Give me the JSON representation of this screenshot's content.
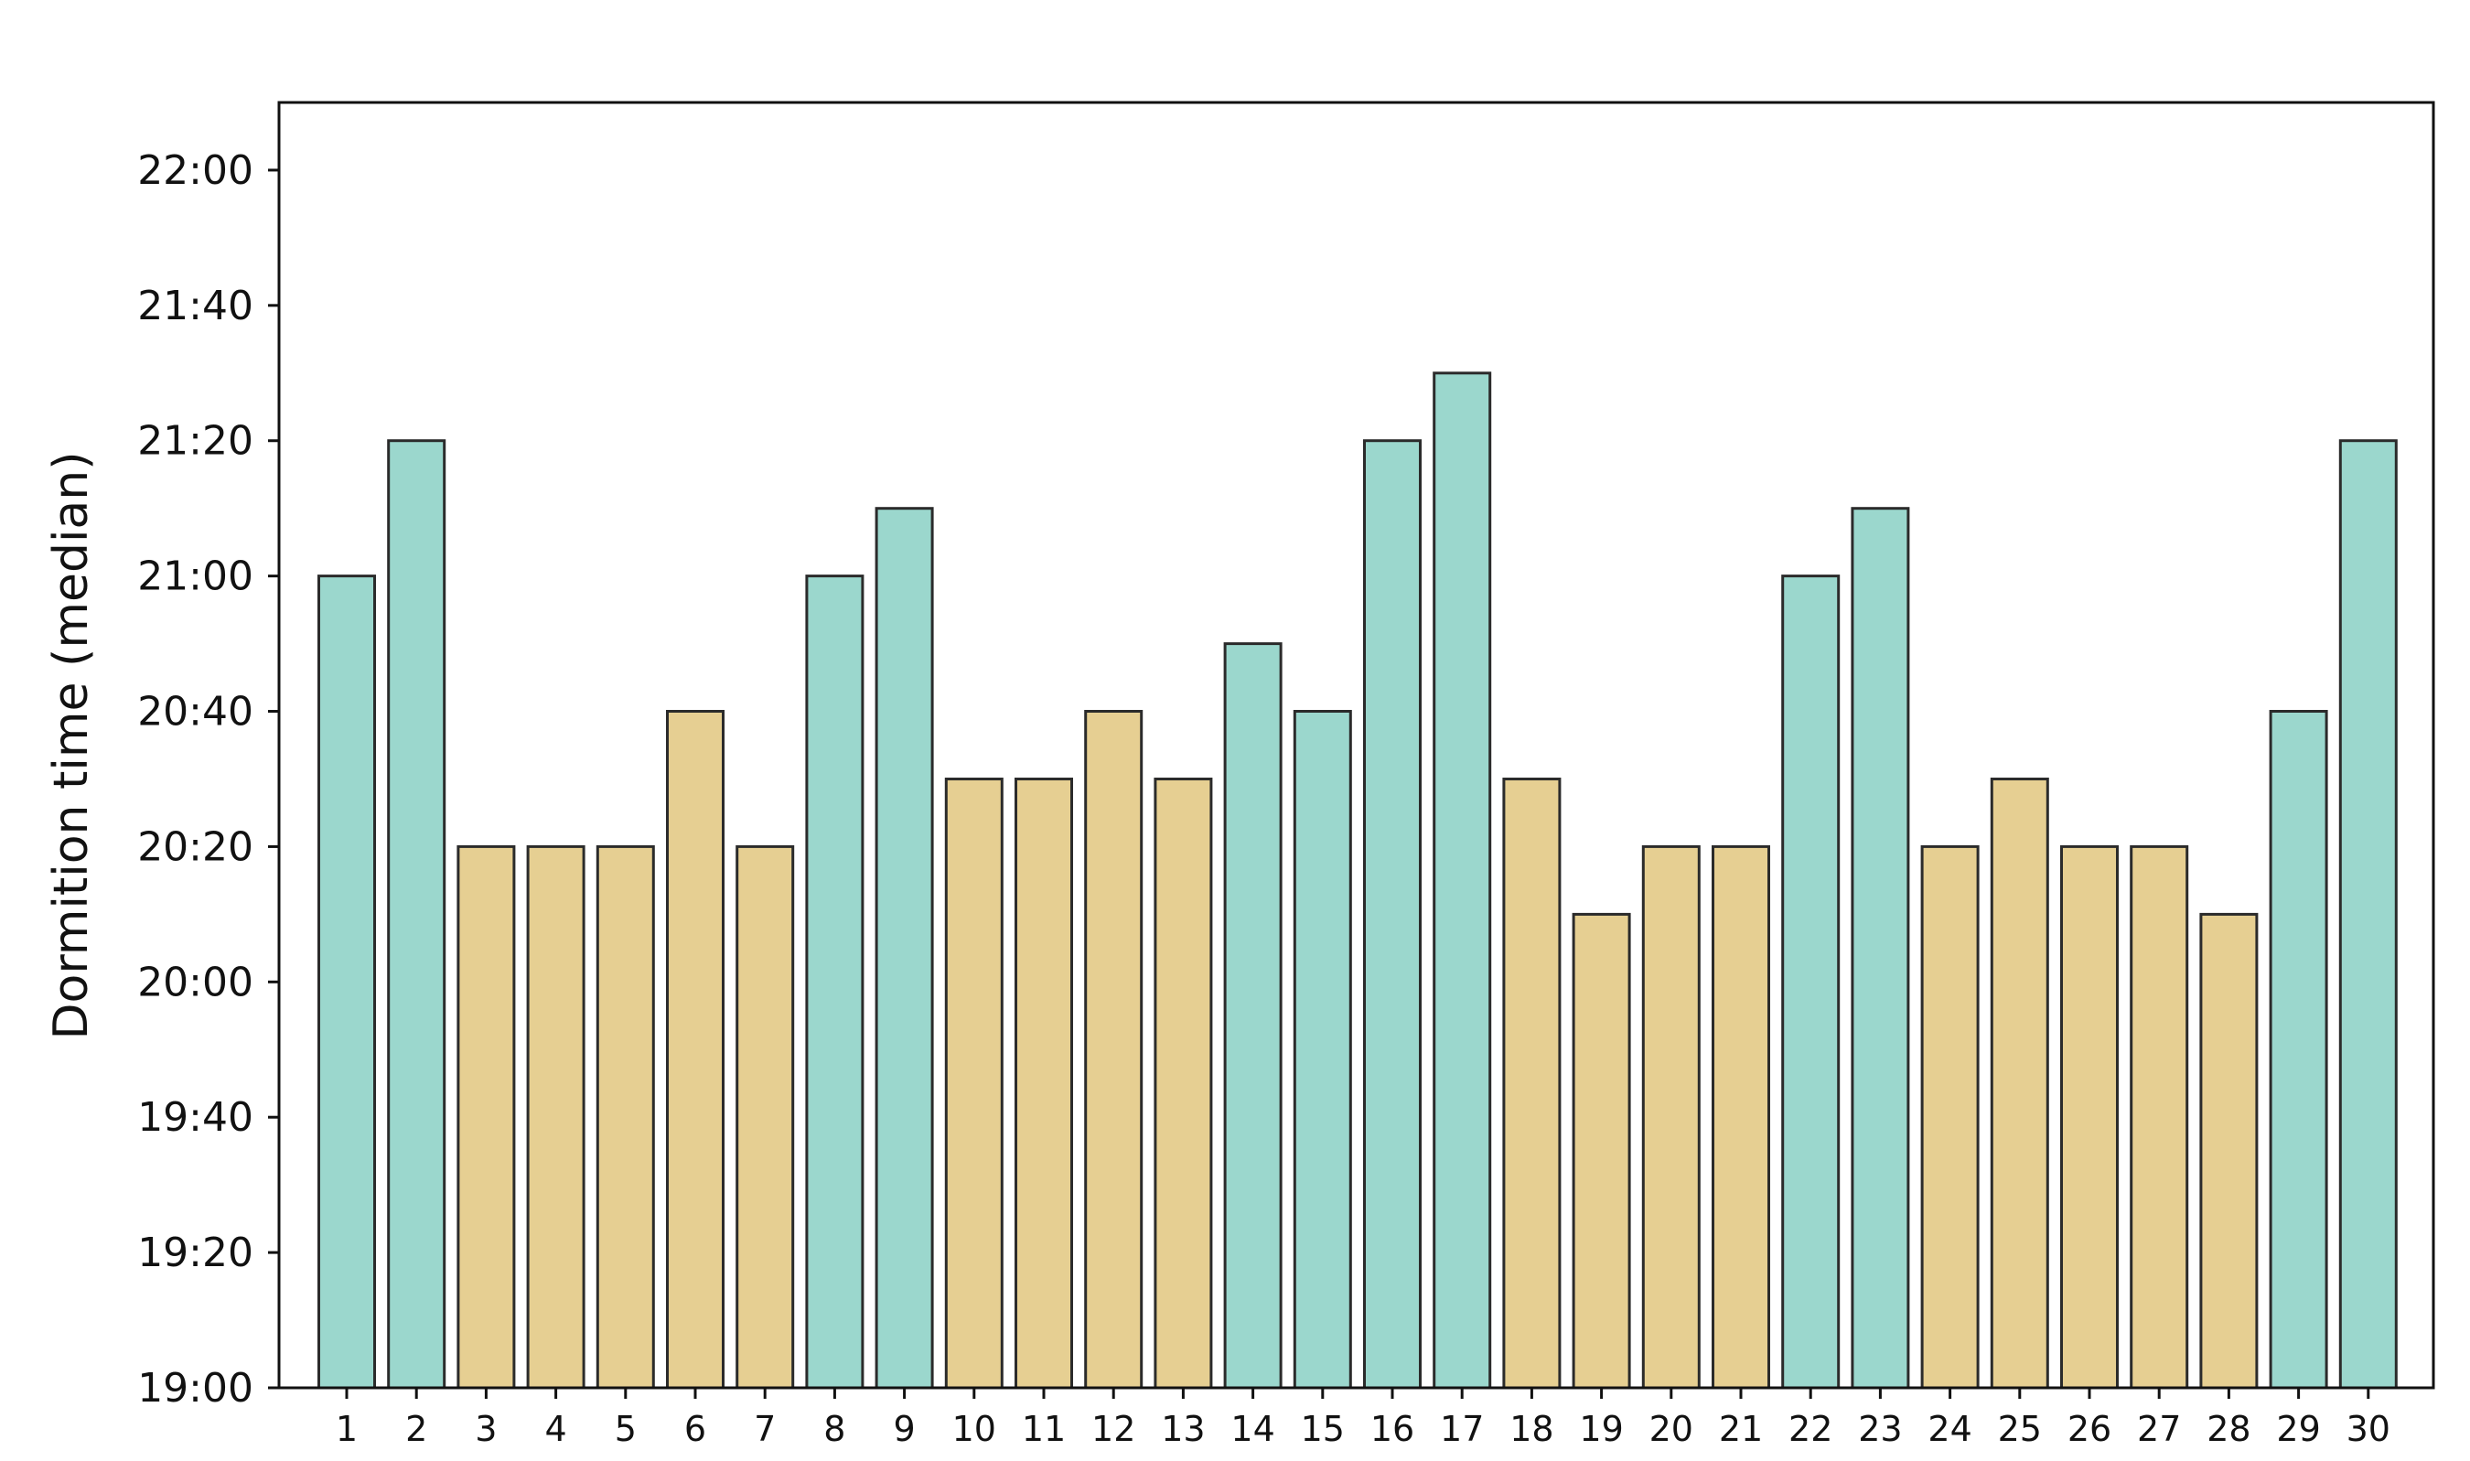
{
  "chart_data": {
    "type": "bar",
    "title": "",
    "xlabel": "",
    "ylabel": "Dormition time (median)",
    "ylim": [
      "19:00",
      "22:10"
    ],
    "y_ticks": [
      "19:00",
      "19:20",
      "19:40",
      "20:00",
      "20:20",
      "20:40",
      "21:00",
      "21:20",
      "21:40",
      "22:00"
    ],
    "grid": false,
    "legend": "none",
    "categories": [
      "1",
      "2",
      "3",
      "4",
      "5",
      "6",
      "7",
      "8",
      "9",
      "10",
      "11",
      "12",
      "13",
      "14",
      "15",
      "16",
      "17",
      "18",
      "19",
      "20",
      "21",
      "22",
      "23",
      "24",
      "25",
      "26",
      "27",
      "28",
      "29",
      "30"
    ],
    "values": [
      "21:00",
      "21:20",
      "20:20",
      "20:20",
      "20:20",
      "20:40",
      "20:20",
      "21:00",
      "21:10",
      "20:30",
      "20:30",
      "20:40",
      "20:30",
      "20:50",
      "20:40",
      "21:20",
      "21:30",
      "20:30",
      "20:10",
      "20:20",
      "20:20",
      "21:00",
      "21:10",
      "20:20",
      "20:30",
      "20:20",
      "20:20",
      "20:10",
      "20:40",
      "21:20"
    ],
    "bar_colors": [
      "teal",
      "teal",
      "tan",
      "tan",
      "tan",
      "tan",
      "tan",
      "teal",
      "teal",
      "tan",
      "tan",
      "tan",
      "tan",
      "teal",
      "teal",
      "teal",
      "teal",
      "tan",
      "tan",
      "tan",
      "tan",
      "teal",
      "teal",
      "tan",
      "tan",
      "tan",
      "tan",
      "tan",
      "teal",
      "teal"
    ],
    "colors": {
      "teal": "#9bd7cd",
      "tan": "#e6cf92",
      "edge": "#2b2b2b",
      "axis": "#111111"
    }
  }
}
